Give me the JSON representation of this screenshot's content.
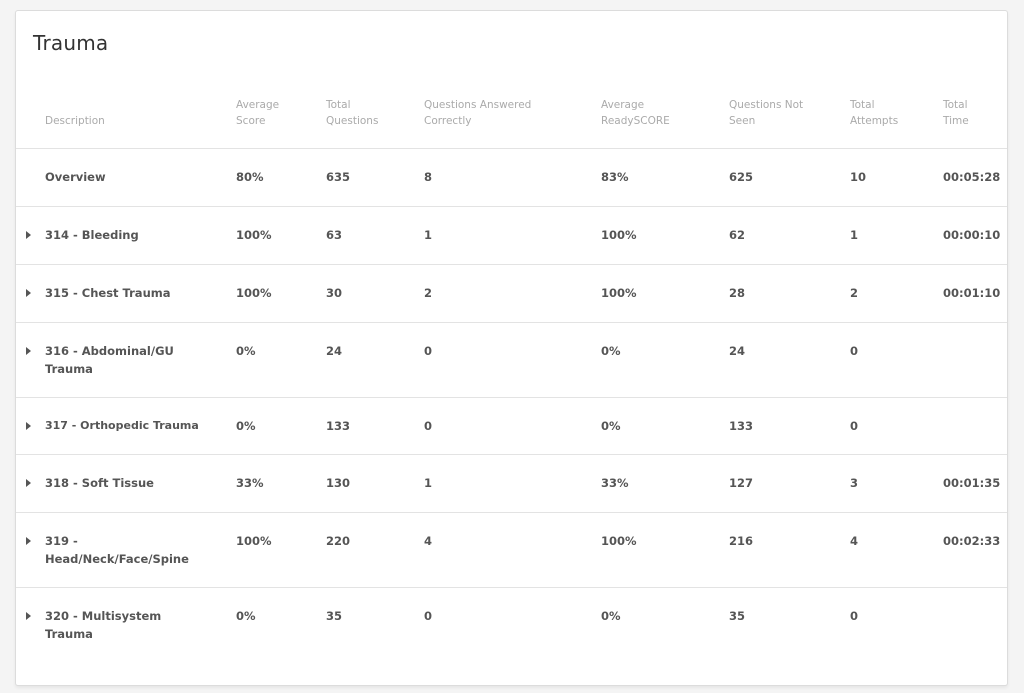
{
  "title": "Trauma",
  "columns": {
    "description": "Description",
    "average_score": [
      "Average",
      "Score"
    ],
    "total_questions": [
      "Total",
      "Questions"
    ],
    "answered_correctly": [
      "Questions Answered",
      "Correctly"
    ],
    "average_readyscore": [
      "Average",
      "ReadySCORE"
    ],
    "not_seen": [
      "Questions Not",
      "Seen"
    ],
    "total_attempts": [
      "Total",
      "Attempts"
    ],
    "total_time": [
      "Total",
      "Time"
    ]
  },
  "rows": [
    {
      "description": "Overview",
      "average_score": "80%",
      "total_questions": "635",
      "answered_correctly": "8",
      "average_readyscore": "83%",
      "not_seen": "625",
      "total_attempts": "10",
      "total_time": "00:05:28",
      "expandable": false
    },
    {
      "description": "314 - Bleeding",
      "average_score": "100%",
      "total_questions": "63",
      "answered_correctly": "1",
      "average_readyscore": "100%",
      "not_seen": "62",
      "total_attempts": "1",
      "total_time": "00:00:10",
      "expandable": true
    },
    {
      "description": "315 - Chest Trauma",
      "average_score": "100%",
      "total_questions": "30",
      "answered_correctly": "2",
      "average_readyscore": "100%",
      "not_seen": "28",
      "total_attempts": "2",
      "total_time": "00:01:10",
      "expandable": true
    },
    {
      "description": "316 - Abdominal/GU Trauma",
      "average_score": "0%",
      "total_questions": "24",
      "answered_correctly": "0",
      "average_readyscore": "0%",
      "not_seen": "24",
      "total_attempts": "0",
      "total_time": "",
      "expandable": true
    },
    {
      "description": "317 - Orthopedic Trauma",
      "average_score": "0%",
      "total_questions": "133",
      "answered_correctly": "0",
      "average_readyscore": "0%",
      "not_seen": "133",
      "total_attempts": "0",
      "total_time": "",
      "expandable": true
    },
    {
      "description": "318 - Soft Tissue",
      "average_score": "33%",
      "total_questions": "130",
      "answered_correctly": "1",
      "average_readyscore": "33%",
      "not_seen": "127",
      "total_attempts": "3",
      "total_time": "00:01:35",
      "expandable": true
    },
    {
      "description": "319 - Head/Neck/Face/Spine",
      "average_score": "100%",
      "total_questions": "220",
      "answered_correctly": "4",
      "average_readyscore": "100%",
      "not_seen": "216",
      "total_attempts": "4",
      "total_time": "00:02:33",
      "expandable": true
    },
    {
      "description": "320 - Multisystem Trauma",
      "average_score": "0%",
      "total_questions": "35",
      "answered_correctly": "0",
      "average_readyscore": "0%",
      "not_seen": "35",
      "total_attempts": "0",
      "total_time": "",
      "expandable": true
    }
  ]
}
